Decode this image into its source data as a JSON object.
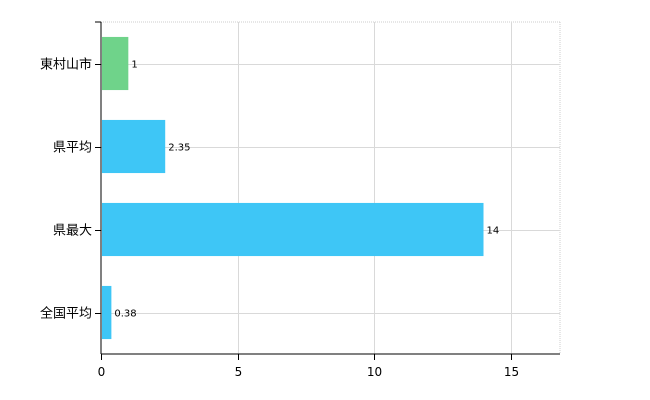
{
  "chart_data": {
    "type": "bar",
    "orientation": "horizontal",
    "categories": [
      "東村山市",
      "県平均",
      "県最大",
      "全国平均"
    ],
    "values": [
      1,
      2.35,
      14,
      0.38
    ],
    "data_labels": [
      "1",
      "2.35",
      "14",
      "0.38"
    ],
    "bar_colors": [
      "#6fd38a",
      "#3ec6f6",
      "#3ec6f6",
      "#3ec6f6"
    ],
    "xlim": [
      0,
      16.8
    ],
    "x_ticks": [
      0,
      5,
      10,
      15
    ],
    "x_tick_labels": [
      "0",
      "5",
      "10",
      "15"
    ],
    "grid": true,
    "legend": "none",
    "title": "",
    "xlabel": "",
    "ylabel": ""
  }
}
